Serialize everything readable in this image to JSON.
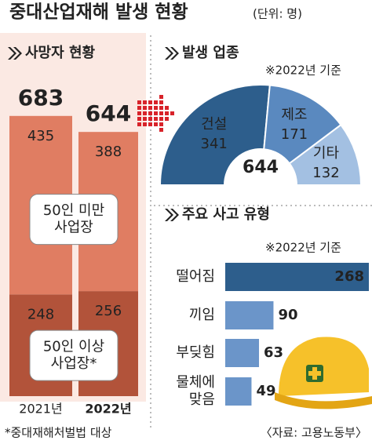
{
  "title": "중대산업재해 발생 현황",
  "unit": "(단위: 명)",
  "footnote": "*중대재해처벌법 대상",
  "source": "〈자료: 고용노동부〉",
  "chart_data": [
    {
      "type": "stacked_bar",
      "title": "사망자 현황",
      "categories": [
        "2021년",
        "2022년"
      ],
      "totals": [
        683,
        644
      ],
      "series": [
        {
          "name": "50인 미만\n사업장",
          "color": "#e07d62",
          "values": [
            435,
            388
          ]
        },
        {
          "name": "50인 이상\n사업장*",
          "color": "#b2533a",
          "values": [
            248,
            256
          ]
        }
      ]
    },
    {
      "type": "donut",
      "title": "발생 업종",
      "note": "※2022년 기준",
      "categories": [
        "건설",
        "제조",
        "기타"
      ],
      "values": [
        341,
        171,
        132
      ],
      "colors": [
        "#2d5e8c",
        "#5a89bf",
        "#a3c0e2"
      ],
      "total": 644
    },
    {
      "type": "hbar",
      "title": "주요 사고 유형",
      "note": "※2022년 기준",
      "categories": [
        "떨어짐",
        "끼임",
        "부딪힘",
        "물체에\n맞음"
      ],
      "values": [
        268,
        90,
        63,
        49
      ],
      "colors": [
        "#2d5e8c",
        "#6b95c9",
        "#6b95c9",
        "#6b95c9"
      ]
    }
  ]
}
